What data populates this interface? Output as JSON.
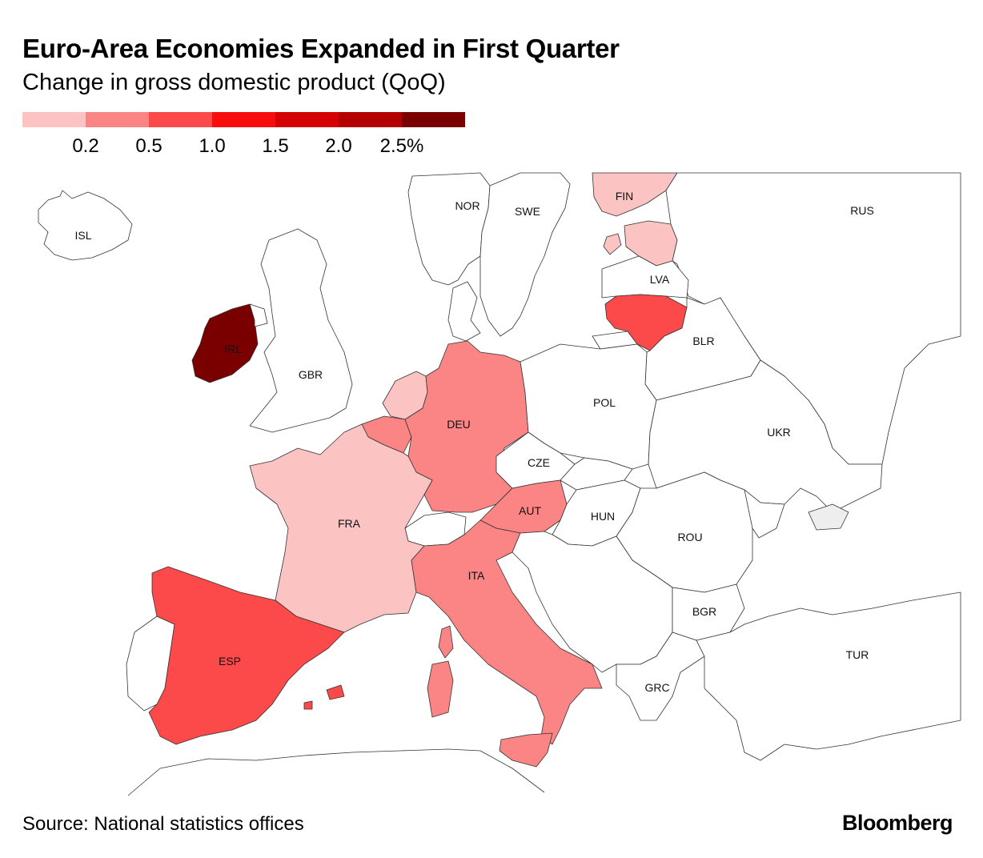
{
  "header": {
    "title": "Euro-Area Economies Expanded in First Quarter",
    "subtitle": "Change in gross domestic product (QoQ)"
  },
  "legend": {
    "colors": [
      "#fcc3c3",
      "#fb8585",
      "#fc4a4a",
      "#f70d0d",
      "#d40202",
      "#b50000",
      "#7a0000"
    ],
    "ticks": [
      "0.2",
      "0.5",
      "1.0",
      "1.5",
      "2.0",
      "2.5%"
    ]
  },
  "map": {
    "countries": [
      {
        "code": "ISL",
        "fill": "#ffffff"
      },
      {
        "code": "NOR",
        "fill": "#ffffff"
      },
      {
        "code": "SWE",
        "fill": "#ffffff"
      },
      {
        "code": "FIN",
        "fill": "#fcc3c3"
      },
      {
        "code": "RUS",
        "fill": "#ffffff"
      },
      {
        "code": "LVA",
        "fill": "#ffffff"
      },
      {
        "code": "BLR",
        "fill": "#ffffff"
      },
      {
        "code": "IRL",
        "fill": "#7a0000"
      },
      {
        "code": "GBR",
        "fill": "#ffffff"
      },
      {
        "code": "DEU",
        "fill": "#fb8585"
      },
      {
        "code": "POL",
        "fill": "#ffffff"
      },
      {
        "code": "UKR",
        "fill": "#ffffff"
      },
      {
        "code": "CZE",
        "fill": "#ffffff"
      },
      {
        "code": "FRA",
        "fill": "#fcc3c3"
      },
      {
        "code": "AUT",
        "fill": "#fb8585"
      },
      {
        "code": "HUN",
        "fill": "#ffffff"
      },
      {
        "code": "ROU",
        "fill": "#ffffff"
      },
      {
        "code": "ITA",
        "fill": "#fb8585"
      },
      {
        "code": "BGR",
        "fill": "#ffffff"
      },
      {
        "code": "ESP",
        "fill": "#fc4a4a"
      },
      {
        "code": "TUR",
        "fill": "#ffffff"
      },
      {
        "code": "GRC",
        "fill": "#ffffff"
      }
    ]
  },
  "footer": {
    "source": "Source: National statistics offices",
    "brand": "Bloomberg"
  }
}
